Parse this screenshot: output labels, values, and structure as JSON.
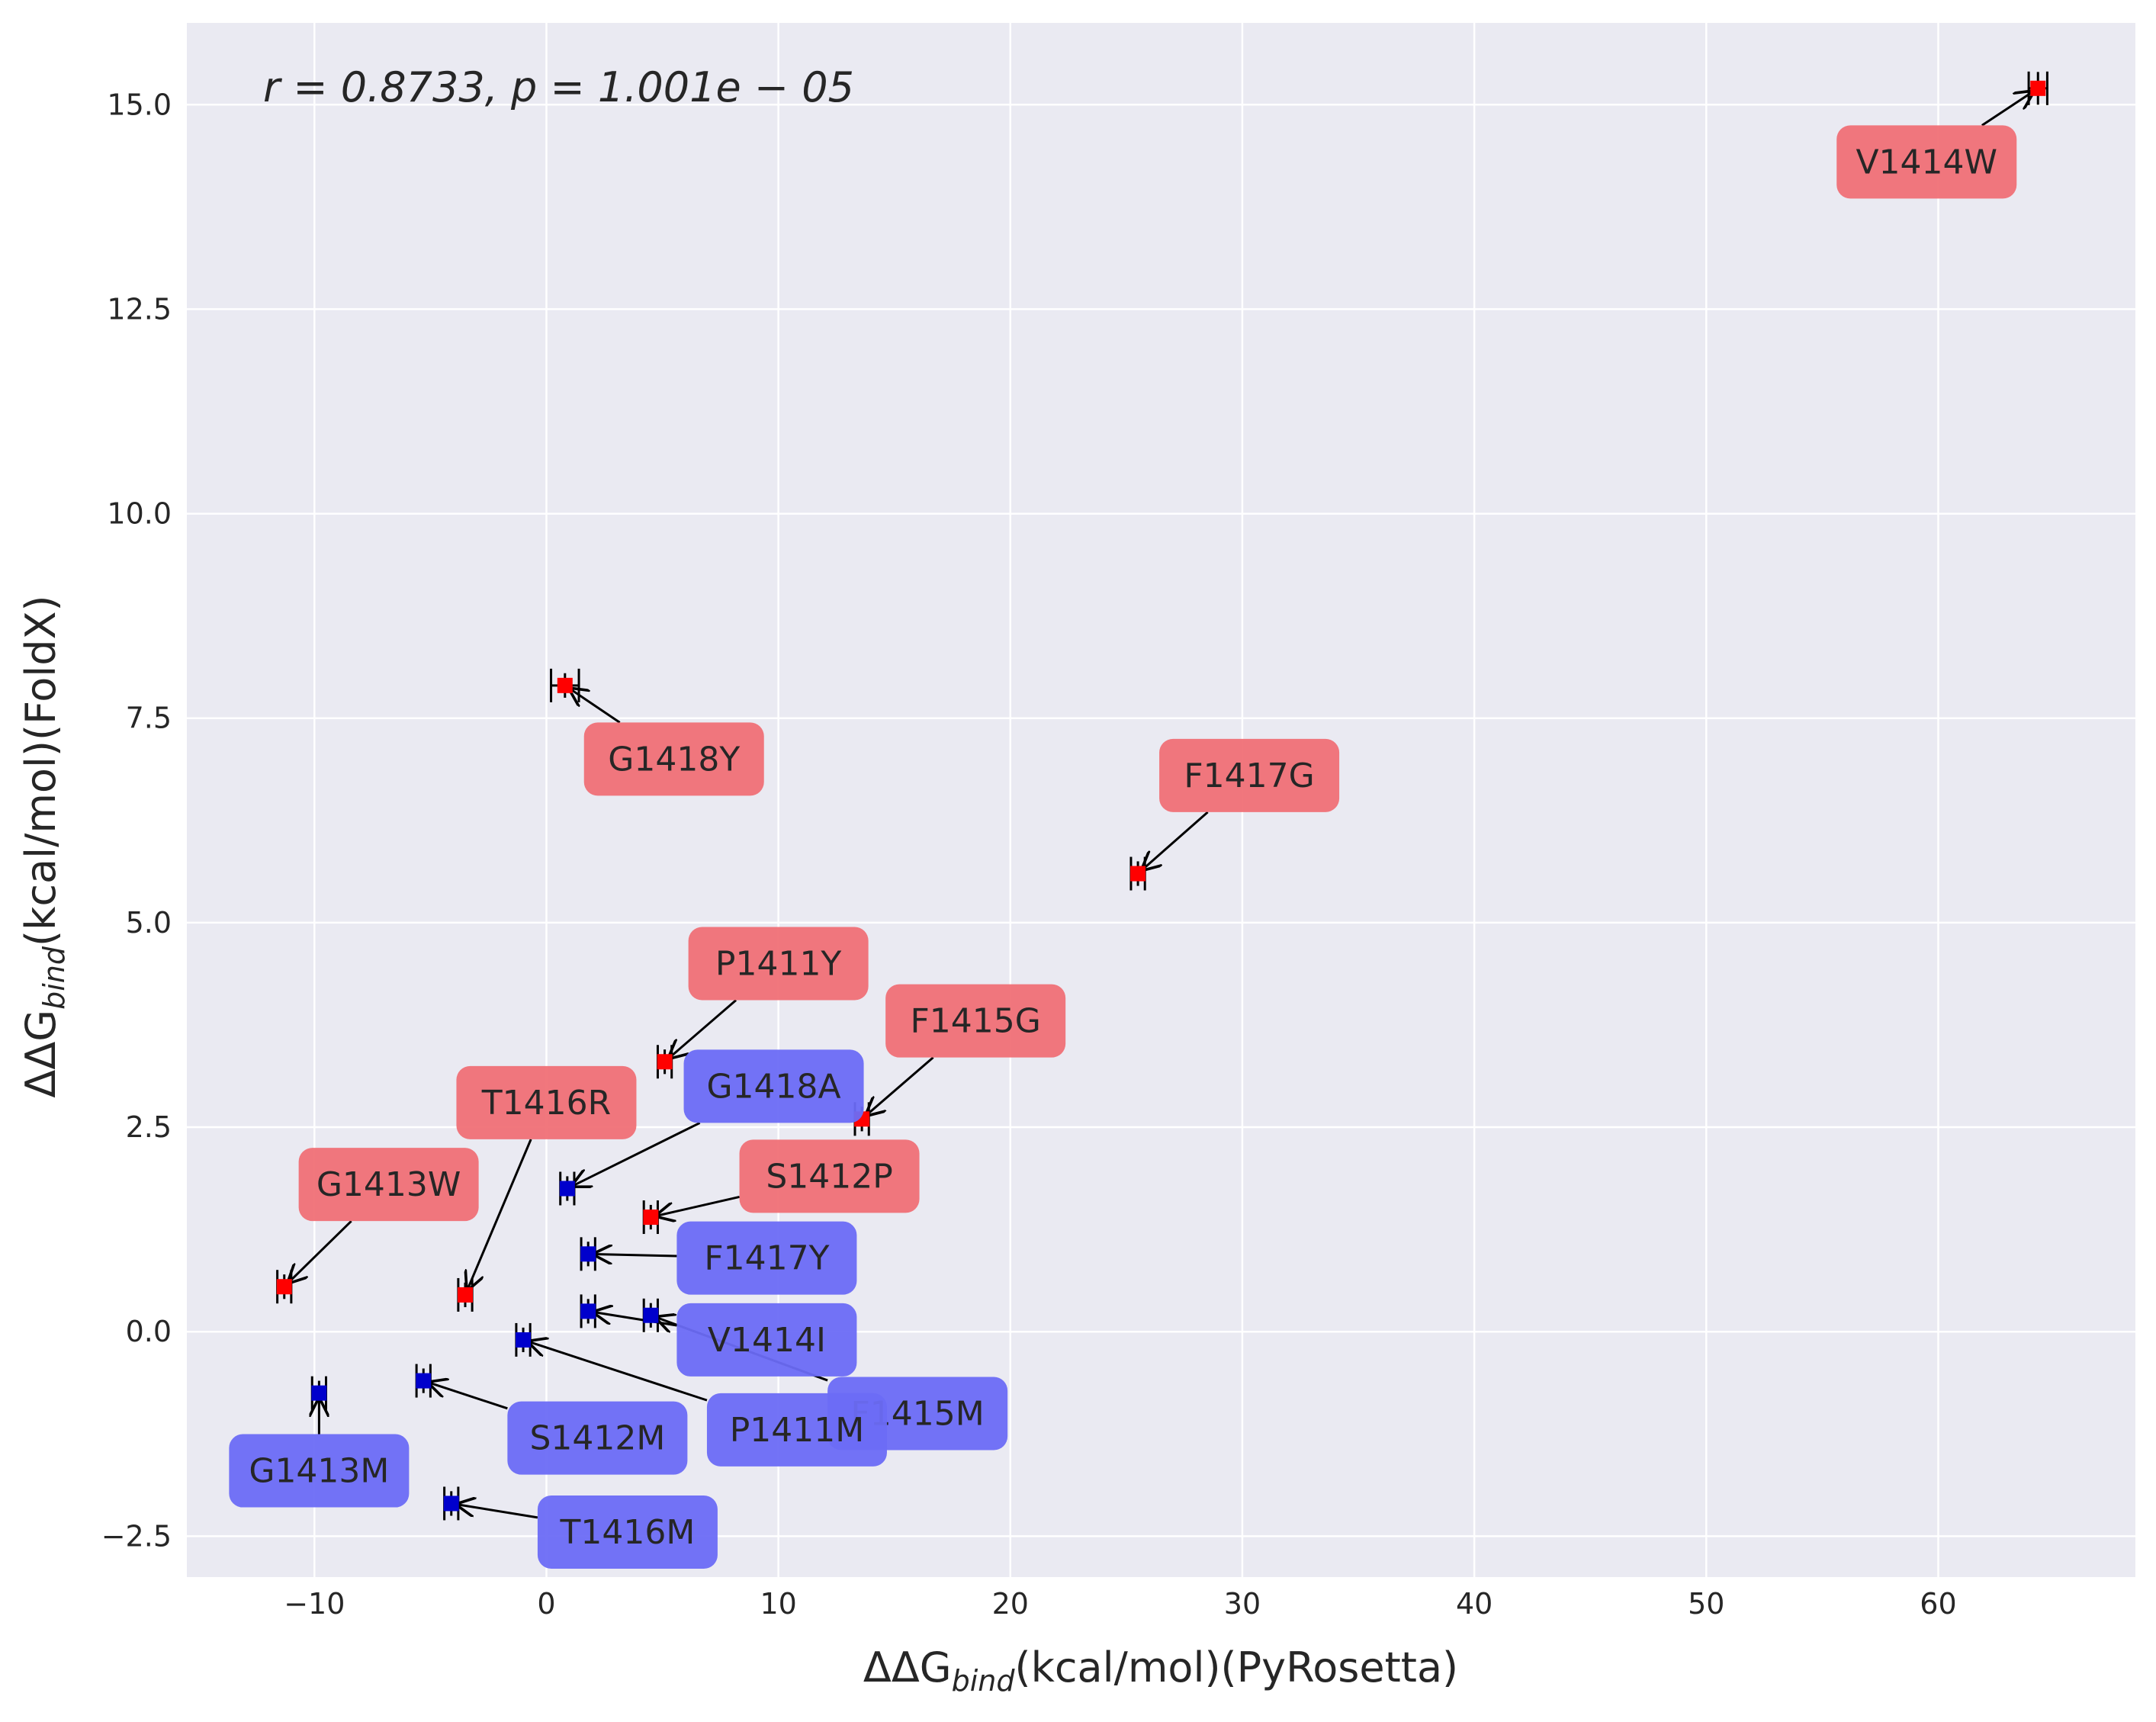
{
  "chart_data": {
    "type": "scatter",
    "title": "",
    "annotation": "r = 0.8733, p = 1.001e − 05",
    "xlabel": {
      "prefix": "ΔΔG",
      "sub": "bind",
      "suffix": "(kcal/mol)(PyRosetta)"
    },
    "ylabel": {
      "prefix": "ΔΔG",
      "sub": "bind",
      "suffix": "(kcal/mol)(FoldX)"
    },
    "xlim": [
      -15.5,
      68.5
    ],
    "ylim": [
      -3.0,
      16.0
    ],
    "xticks": [
      -10,
      0,
      10,
      20,
      30,
      40,
      50,
      60
    ],
    "xtick_labels": [
      "−10",
      "0",
      "10",
      "20",
      "30",
      "40",
      "50",
      "60"
    ],
    "yticks": [
      -2.5,
      0.0,
      2.5,
      5.0,
      7.5,
      10.0,
      12.5,
      15.0
    ],
    "ytick_labels": [
      "−2.5",
      "0.0",
      "2.5",
      "5.0",
      "7.5",
      "10.0",
      "12.5",
      "15.0"
    ],
    "grid": true,
    "colors": {
      "background": "#eaeaf2",
      "grid": "#ffffff",
      "red_point": "#ff0000",
      "blue_point": "#0000cc",
      "red_box": "#f07076",
      "blue_box": "#6b6bf5",
      "errorbar": "#000000"
    },
    "points": [
      {
        "label": "V1414W",
        "x": 64.3,
        "y": 15.2,
        "xerr": 0.4,
        "yerr": 0.2,
        "group": "red",
        "lx": 59.5,
        "ly": 14.3
      },
      {
        "label": "G1418Y",
        "x": 0.8,
        "y": 7.9,
        "xerr": 0.6,
        "yerr": 0.15,
        "group": "red",
        "lx": 5.5,
        "ly": 7.0
      },
      {
        "label": "F1417G",
        "x": 25.5,
        "y": 5.6,
        "xerr": 0.3,
        "yerr": 0.15,
        "group": "red",
        "lx": 30.3,
        "ly": 6.8
      },
      {
        "label": "P1411Y",
        "x": 5.1,
        "y": 3.3,
        "xerr": 0.3,
        "yerr": 0.15,
        "group": "red",
        "lx": 10.0,
        "ly": 4.5
      },
      {
        "label": "F1415G",
        "x": 13.6,
        "y": 2.6,
        "xerr": 0.3,
        "yerr": 0.15,
        "group": "red",
        "lx": 18.5,
        "ly": 3.8
      },
      {
        "label": "T1416R",
        "x": -3.5,
        "y": 0.45,
        "xerr": 0.3,
        "yerr": 0.15,
        "group": "red",
        "lx": 0.0,
        "ly": 2.8
      },
      {
        "label": "G1413W",
        "x": -11.3,
        "y": 0.55,
        "xerr": 0.3,
        "yerr": 0.15,
        "group": "red",
        "lx": -6.8,
        "ly": 1.8
      },
      {
        "label": "S1412P",
        "x": 4.5,
        "y": 1.4,
        "xerr": 0.3,
        "yerr": 0.15,
        "group": "red",
        "lx": 12.2,
        "ly": 1.9
      },
      {
        "label": "G1418A",
        "x": 0.9,
        "y": 1.75,
        "xerr": 0.3,
        "yerr": 0.15,
        "group": "blue",
        "lx": 9.8,
        "ly": 3.0
      },
      {
        "label": "F1417Y",
        "x": 1.8,
        "y": 0.95,
        "xerr": 0.3,
        "yerr": 0.15,
        "group": "blue",
        "lx": 9.5,
        "ly": 0.9
      },
      {
        "label": "V1414I",
        "x": 1.8,
        "y": 0.25,
        "xerr": 0.3,
        "yerr": 0.15,
        "group": "blue",
        "lx": 9.5,
        "ly": -0.1
      },
      {
        "label": "F1415M",
        "x": 4.5,
        "y": 0.2,
        "xerr": 0.3,
        "yerr": 0.15,
        "group": "blue",
        "lx": 16.0,
        "ly": -1.0
      },
      {
        "label": "P1411M",
        "x": -1.0,
        "y": -0.1,
        "xerr": 0.3,
        "yerr": 0.15,
        "group": "blue",
        "lx": 10.8,
        "ly": -1.2
      },
      {
        "label": "S1412M",
        "x": -5.3,
        "y": -0.6,
        "xerr": 0.3,
        "yerr": 0.15,
        "group": "blue",
        "lx": 2.2,
        "ly": -1.3
      },
      {
        "label": "G1413M",
        "x": -9.8,
        "y": -0.75,
        "xerr": 0.3,
        "yerr": 0.15,
        "group": "blue",
        "lx": -9.8,
        "ly": -1.7
      },
      {
        "label": "T1416M",
        "x": -4.1,
        "y": -2.1,
        "xerr": 0.3,
        "yerr": 0.15,
        "group": "blue",
        "lx": 3.5,
        "ly": -2.45
      }
    ]
  }
}
